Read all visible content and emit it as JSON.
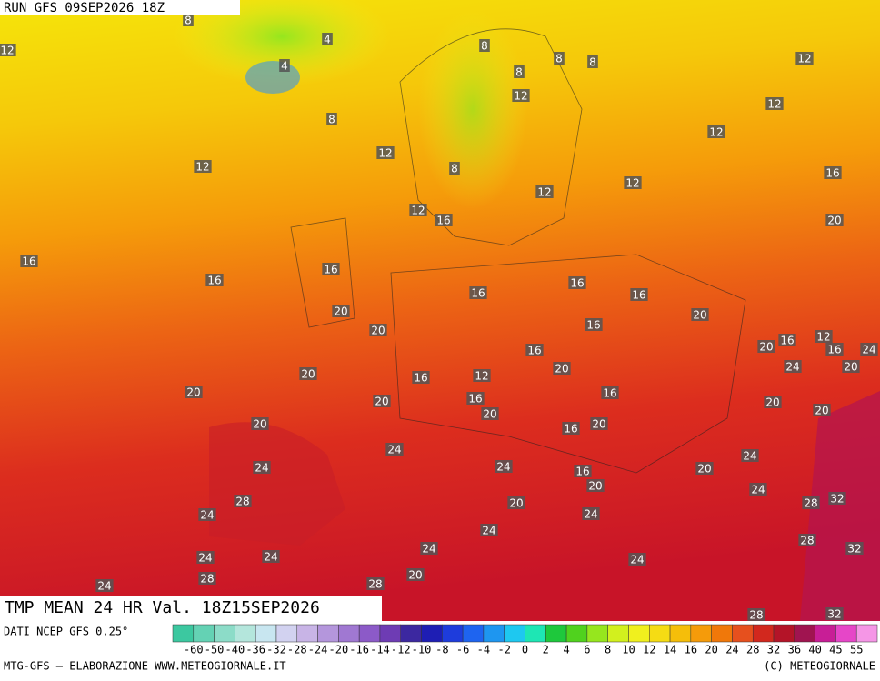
{
  "header": {
    "run": "RUN GFS 09SEP2026 18Z"
  },
  "map": {
    "contour_labels": [
      12,
      8,
      4,
      4,
      8,
      8,
      8,
      8,
      8,
      12,
      12,
      12,
      12,
      12,
      12,
      8,
      16,
      12,
      12,
      12,
      16,
      20,
      16,
      16,
      16,
      16,
      16,
      16,
      20,
      20,
      20,
      16,
      12,
      16,
      20,
      16,
      24,
      16,
      20,
      16,
      12,
      20,
      24,
      20,
      20,
      20,
      16,
      16,
      20,
      20,
      20,
      20,
      20,
      16,
      24,
      24,
      24,
      24,
      20,
      16,
      20,
      24,
      28,
      20,
      28,
      32,
      24,
      24,
      24,
      28,
      32,
      24,
      24,
      24,
      24,
      28,
      20,
      28,
      24,
      28,
      32
    ]
  },
  "title": "TMP MEAN 24 HR Val. 18Z15SEP2026",
  "colorbar": {
    "source": "DATI NCEP GFS 0.25°",
    "labels": [
      -60,
      -50,
      -40,
      -36,
      -32,
      -28,
      -24,
      -20,
      -16,
      -14,
      -12,
      -10,
      -8,
      -6,
      -4,
      -2,
      0,
      2,
      4,
      6,
      8,
      10,
      12,
      14,
      16,
      20,
      24,
      28,
      32,
      36,
      40,
      45,
      55
    ],
    "colors": [
      "#3cc8a0",
      "#64d2b4",
      "#8cdcc8",
      "#b4e6dc",
      "#c8e6f0",
      "#d2d2f0",
      "#c8b4e6",
      "#b496dc",
      "#a078d2",
      "#8c5ac8",
      "#6e3cb4",
      "#3c28a0",
      "#1e1eb4",
      "#1e3cdc",
      "#1e64f0",
      "#1e96f0",
      "#1ec8f0",
      "#1ee6b4",
      "#1ec83c",
      "#50d21e",
      "#96e61e",
      "#d2f01e",
      "#f0f01e",
      "#f5dc14",
      "#f5be0a",
      "#f59b0a",
      "#f0780a",
      "#e6501e",
      "#d2281e",
      "#b41428",
      "#a01450",
      "#c81e96",
      "#e646c8",
      "#f596e6"
    ]
  },
  "footer": {
    "left": "MTG-GFS — ELABORAZIONE WWW.METEOGIORNALE.IT",
    "right": "(C) METEOGIORNALE"
  }
}
